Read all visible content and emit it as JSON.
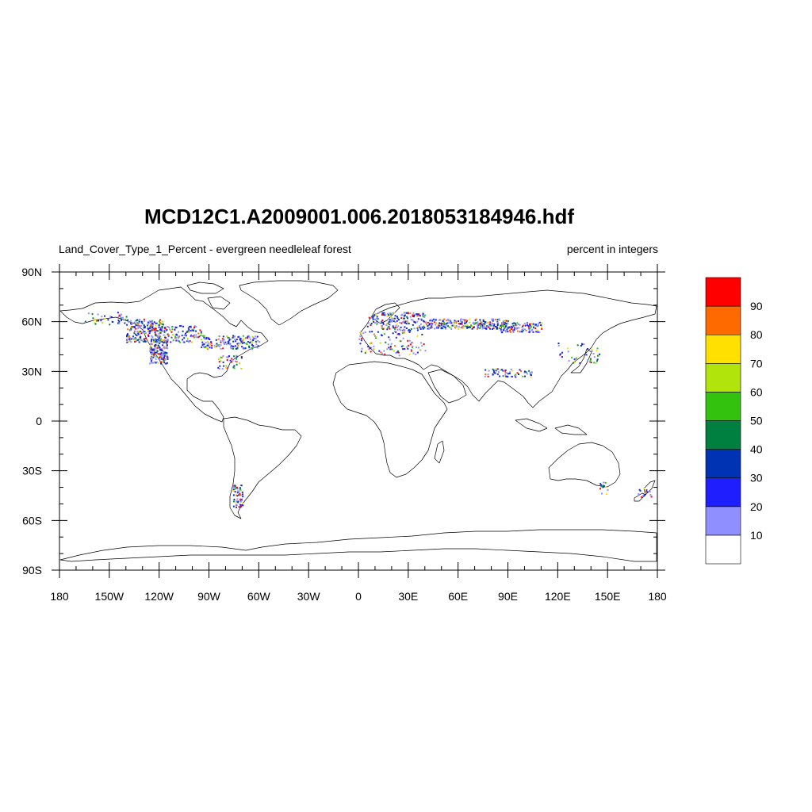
{
  "title": "MCD12C1.A2009001.006.2018053184946.hdf",
  "subtitle_left": "Land_Cover_Type_1_Percent - evergreen needleleaf forest",
  "subtitle_right": "percent in integers",
  "map": {
    "projection": "cylindrical equidistant",
    "lon_range": [
      -180,
      180
    ],
    "lat_range": [
      -90,
      90
    ],
    "lat_ticks": [
      {
        "value": 90,
        "label": "90N"
      },
      {
        "value": 60,
        "label": "60N"
      },
      {
        "value": 30,
        "label": "30N"
      },
      {
        "value": 0,
        "label": "0"
      },
      {
        "value": -30,
        "label": "30S"
      },
      {
        "value": -60,
        "label": "60S"
      },
      {
        "value": -90,
        "label": "90S"
      }
    ],
    "lon_ticks": [
      {
        "value": -180,
        "label": "180"
      },
      {
        "value": -150,
        "label": "150W"
      },
      {
        "value": -120,
        "label": "120W"
      },
      {
        "value": -90,
        "label": "90W"
      },
      {
        "value": -60,
        "label": "60W"
      },
      {
        "value": -30,
        "label": "30W"
      },
      {
        "value": 0,
        "label": "0"
      },
      {
        "value": 30,
        "label": "30E"
      },
      {
        "value": 60,
        "label": "60E"
      },
      {
        "value": 90,
        "label": "90E"
      },
      {
        "value": 120,
        "label": "120E"
      },
      {
        "value": 150,
        "label": "150E"
      },
      {
        "value": 180,
        "label": "180"
      }
    ]
  },
  "colorbar": {
    "levels": [
      10,
      20,
      30,
      40,
      50,
      60,
      70,
      80,
      90
    ],
    "labels": [
      "10",
      "20",
      "30",
      "40",
      "50",
      "60",
      "70",
      "80",
      "90"
    ],
    "colors": [
      "#ffffff",
      "#8f8fff",
      "#1e1eff",
      "#0033b3",
      "#008040",
      "#33c30f",
      "#b0e40a",
      "#ffe000",
      "#ff6a00",
      "#ff0000"
    ]
  }
}
